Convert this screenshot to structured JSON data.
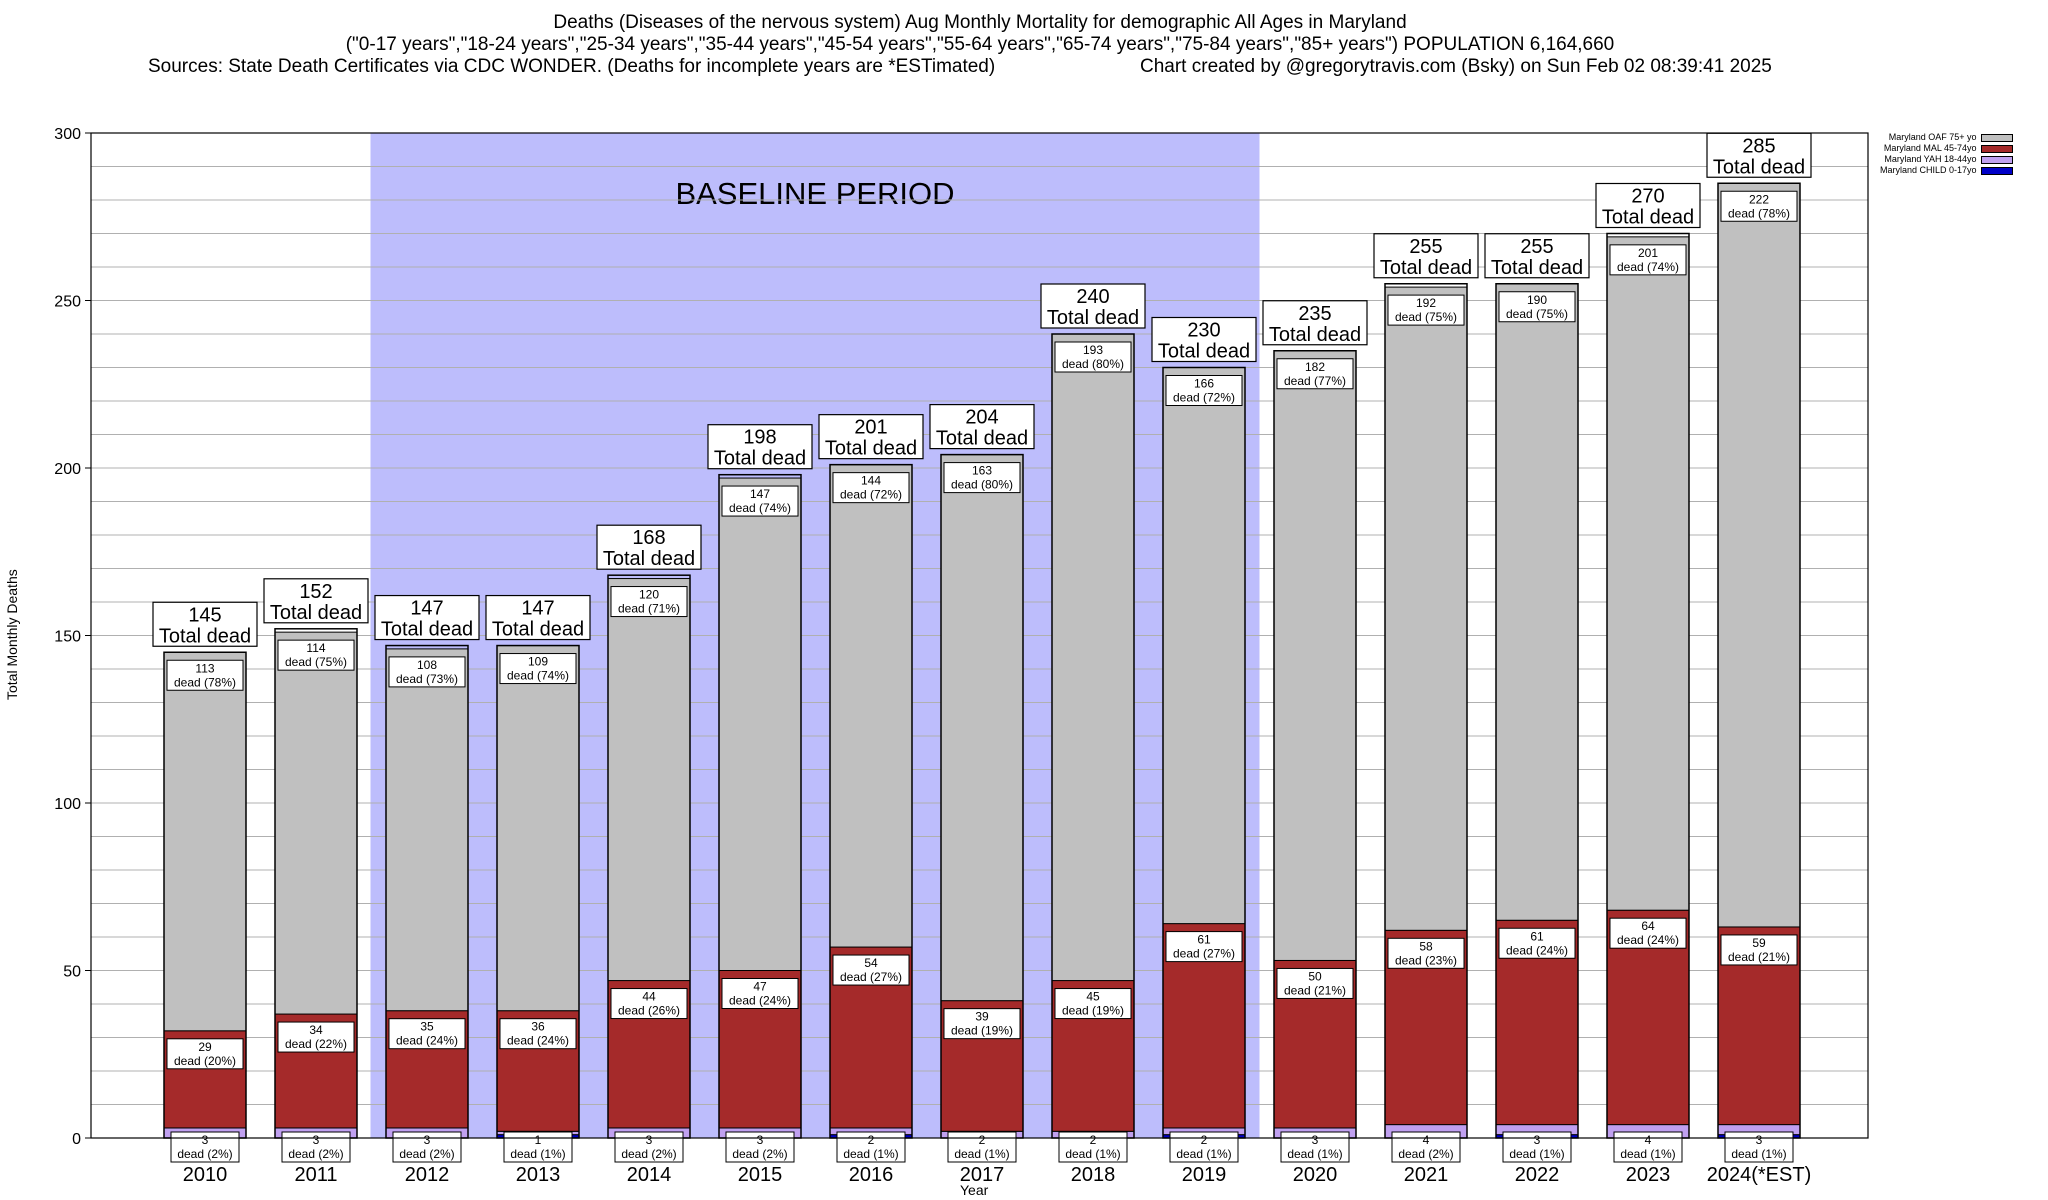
{
  "chart_data": {
    "type": "bar",
    "stacked": true,
    "title": "Deaths (Diseases of the nervous system) Aug Monthly Mortality for demographic All Ages in Maryland",
    "subtitle": "(\"0-17 years\",\"18-24 years\",\"25-34 years\",\"35-44 years\",\"45-54 years\",\"55-64 years\",\"65-74 years\",\"75-84 years\",\"85+ years\") POPULATION 6,164,660",
    "source": "Sources: State Death Certificates via CDC WONDER. (Deaths for incomplete years are *ESTimated)",
    "credit": "Chart created by @gregorytravis.com (Bsky) on Sun Feb 02 08:39:41 2025",
    "xlabel": "Year",
    "ylabel": "Total Monthly Deaths",
    "ylim": [
      0,
      300
    ],
    "yticks": [
      0,
      50,
      100,
      150,
      200,
      250,
      300
    ],
    "baseline_label": "BASELINE PERIOD",
    "baseline_range": [
      "2012",
      "2019"
    ],
    "categories": [
      "2010",
      "2011",
      "2012",
      "2013",
      "2014",
      "2015",
      "2016",
      "2017",
      "2018",
      "2019",
      "2020",
      "2021",
      "2022",
      "2023",
      "2024(*EST)"
    ],
    "totals": [
      145,
      152,
      147,
      147,
      168,
      198,
      201,
      204,
      240,
      230,
      235,
      255,
      255,
      270,
      285
    ],
    "total_label": "Total dead",
    "dead_word": "dead",
    "series": [
      {
        "name": "Maryland CHILD 0-17yo",
        "color": "#0000c8",
        "values": [
          0,
          0,
          0,
          1,
          0,
          0,
          1,
          0,
          0,
          1,
          0,
          0,
          1,
          0,
          1
        ],
        "labels": [
          "",
          "",
          "",
          "1",
          "",
          "",
          "",
          "",
          "",
          "",
          "",
          "",
          "",
          "",
          ""
        ],
        "pcts": [
          "",
          "",
          "",
          "",
          "",
          "",
          "",
          "",
          "",
          "",
          "",
          "",
          "",
          "",
          ""
        ]
      },
      {
        "name": "Maryland YAH 18-44yo",
        "color": "#c0a0f0",
        "values": [
          3,
          3,
          3,
          1,
          3,
          3,
          2,
          2,
          2,
          2,
          3,
          4,
          3,
          4,
          3
        ],
        "labels": [
          "3",
          "3",
          "3",
          "",
          "3",
          "3",
          "2",
          "2",
          "2",
          "2",
          "3",
          "4",
          "3",
          "4",
          "3"
        ],
        "pcts": [
          "(2%)",
          "(2%)",
          "(2%)",
          "(1%)",
          "(2%)",
          "(2%)",
          "(1%)",
          "(1%)",
          "(1%)",
          "(1%)",
          "(1%)",
          "(2%)",
          "(1%)",
          "(1%)",
          "(1%)"
        ]
      },
      {
        "name": "Maryland MAL 45-74yo",
        "color": "#a52a2a",
        "values": [
          29,
          34,
          35,
          36,
          44,
          47,
          54,
          39,
          45,
          61,
          50,
          58,
          61,
          64,
          59
        ],
        "labels": [
          "29",
          "34",
          "35",
          "36",
          "44",
          "47",
          "54",
          "39",
          "45",
          "61",
          "50",
          "58",
          "61",
          "64",
          "59"
        ],
        "pcts": [
          "(20%)",
          "(22%)",
          "(24%)",
          "(24%)",
          "(26%)",
          "(24%)",
          "(27%)",
          "(19%)",
          "(19%)",
          "(27%)",
          "(21%)",
          "(23%)",
          "(24%)",
          "(24%)",
          "(21%)"
        ]
      },
      {
        "name": "Maryland OAF 75+ yo",
        "color": "#c0c0c0",
        "values": [
          113,
          114,
          108,
          109,
          120,
          147,
          144,
          163,
          193,
          166,
          182,
          192,
          190,
          201,
          222
        ],
        "labels": [
          "113",
          "114",
          "108",
          "109",
          "120",
          "147",
          "144",
          "163",
          "193",
          "166",
          "182",
          "192",
          "190",
          "201",
          "222"
        ],
        "pcts": [
          "(78%)",
          "(75%)",
          "(73%)",
          "(74%)",
          "(71%)",
          "(74%)",
          "(72%)",
          "(80%)",
          "(80%)",
          "(72%)",
          "(77%)",
          "(75%)",
          "(75%)",
          "(74%)",
          "(78%)"
        ]
      }
    ],
    "legend": [
      "Maryland OAF 75+ yo",
      "Maryland MAL 45-74yo",
      "Maryland YAH 18-44yo",
      "Maryland CHILD 0-17yo"
    ],
    "legend_colors": [
      "#c0c0c0",
      "#a52a2a",
      "#c0a0f0",
      "#0000c8"
    ]
  }
}
